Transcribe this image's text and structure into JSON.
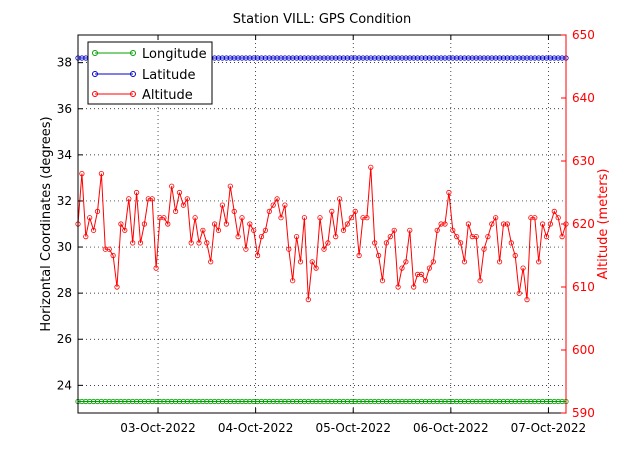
{
  "chart_data": {
    "type": "line",
    "title": "Station VILL: GPS Condition",
    "ylabel_left": "Horizontal Coordinates (degrees)",
    "ylabel_right": "Altitude (meters)",
    "ylim_left": [
      22.8,
      39.2
    ],
    "ylim_right": [
      590,
      650
    ],
    "yticks_left": [
      "24",
      "26",
      "28",
      "30",
      "32",
      "34",
      "36",
      "38"
    ],
    "yticks_right": [
      "590",
      "600",
      "610",
      "620",
      "630",
      "640",
      "650"
    ],
    "xlim": [
      0,
      125
    ],
    "xticks": [
      {
        "x": 20.5,
        "label": "03-Oct-2022"
      },
      {
        "x": 45.5,
        "label": "04-Oct-2022"
      },
      {
        "x": 70.5,
        "label": "05-Oct-2022"
      },
      {
        "x": 95.5,
        "label": "06-Oct-2022"
      },
      {
        "x": 120.5,
        "label": "07-Oct-2022"
      }
    ],
    "grid": true,
    "legend_position": "top-left",
    "series": [
      {
        "name": "Longitude",
        "axis": "left",
        "color": "#00a000",
        "constant": 23.3
      },
      {
        "name": "Latitude",
        "axis": "left",
        "color": "#0000cc",
        "constant": 38.2
      },
      {
        "name": "Altitude",
        "axis": "right",
        "color": "#ff0000",
        "values": [
          620,
          628,
          618,
          621,
          619,
          622,
          628,
          616,
          616,
          615,
          610,
          620,
          619,
          624,
          617,
          625,
          617,
          620,
          624,
          624,
          613,
          621,
          621,
          620,
          626,
          622,
          625,
          623,
          624,
          617,
          621,
          617,
          619,
          617,
          614,
          620,
          619,
          623,
          620,
          626,
          622,
          618,
          621,
          616,
          620,
          619,
          615,
          618,
          619,
          622,
          623,
          624,
          621,
          623,
          616,
          611,
          618,
          614,
          621,
          608,
          614,
          613,
          621,
          616,
          617,
          622,
          618,
          624,
          619,
          620,
          621,
          622,
          615,
          621,
          621,
          629,
          617,
          615,
          611,
          617,
          618,
          619,
          610,
          613,
          614,
          619,
          610,
          612,
          612,
          611,
          613,
          614,
          619,
          620,
          620,
          625,
          619,
          618,
          617,
          614,
          620,
          618,
          618,
          611,
          616,
          618,
          620,
          621,
          614,
          620,
          620,
          617,
          615,
          609,
          613,
          608,
          621,
          621,
          614,
          620,
          618,
          620,
          622,
          621,
          618,
          620
        ]
      }
    ]
  }
}
